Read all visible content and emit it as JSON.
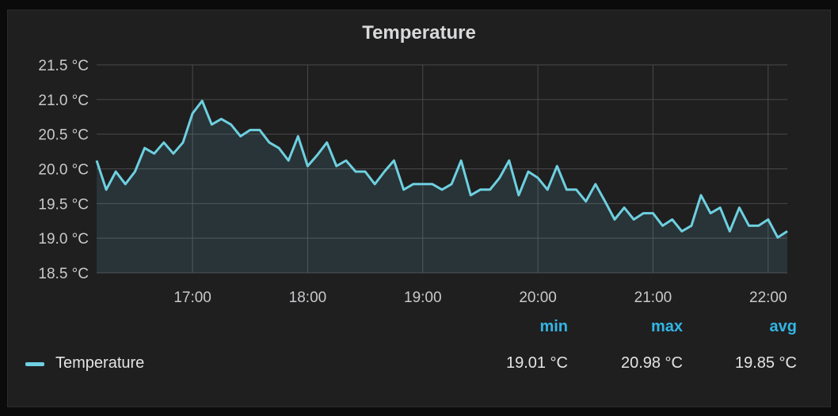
{
  "panel": {
    "title": "Temperature"
  },
  "chart_data": {
    "type": "area",
    "title": "Temperature",
    "ylim": [
      18.5,
      21.5
    ],
    "yticks": [
      "18.5 °C",
      "19.0 °C",
      "19.5 °C",
      "20.0 °C",
      "20.5 °C",
      "21.0 °C",
      "21.5 °C"
    ],
    "ytick_values": [
      18.5,
      19.0,
      19.5,
      20.0,
      20.5,
      21.0,
      21.5
    ],
    "xticks": [
      "17:00",
      "18:00",
      "19:00",
      "20:00",
      "21:00",
      "22:00"
    ],
    "xtick_values": [
      1020,
      1080,
      1140,
      1200,
      1260,
      1320
    ],
    "xlim": [
      970,
      1330
    ],
    "grid": true,
    "series": [
      {
        "name": "Temperature",
        "color": "#6ed0e0",
        "x": [
          970,
          975,
          980,
          985,
          990,
          995,
          1000,
          1005,
          1010,
          1015,
          1020,
          1025,
          1030,
          1035,
          1040,
          1045,
          1050,
          1055,
          1060,
          1065,
          1070,
          1075,
          1080,
          1085,
          1090,
          1095,
          1100,
          1105,
          1110,
          1115,
          1120,
          1125,
          1130,
          1135,
          1140,
          1145,
          1150,
          1155,
          1160,
          1165,
          1170,
          1175,
          1180,
          1185,
          1190,
          1195,
          1200,
          1205,
          1210,
          1215,
          1220,
          1225,
          1230,
          1235,
          1240,
          1245,
          1250,
          1255,
          1260,
          1265,
          1270,
          1275,
          1280,
          1285,
          1290,
          1295,
          1300,
          1305,
          1310,
          1315,
          1320,
          1325,
          1330
        ],
        "values": [
          20.12,
          19.7,
          19.96,
          19.78,
          19.96,
          20.3,
          20.22,
          20.38,
          20.22,
          20.38,
          20.8,
          20.98,
          20.64,
          20.72,
          20.64,
          20.47,
          20.56,
          20.56,
          20.38,
          20.3,
          20.12,
          20.47,
          20.04,
          20.2,
          20.38,
          20.04,
          20.12,
          19.96,
          19.96,
          19.78,
          19.96,
          20.12,
          19.7,
          19.78,
          19.78,
          19.78,
          19.7,
          19.78,
          20.12,
          19.62,
          19.7,
          19.7,
          19.87,
          20.12,
          19.62,
          19.96,
          19.87,
          19.7,
          20.04,
          19.7,
          19.7,
          19.53,
          19.78,
          19.53,
          19.27,
          19.44,
          19.27,
          19.36,
          19.36,
          19.18,
          19.27,
          19.1,
          19.18,
          19.62,
          19.36,
          19.44,
          19.1,
          19.44,
          19.18,
          19.18,
          19.27,
          19.01,
          19.1
        ]
      }
    ]
  },
  "legend": {
    "series_name": "Temperature",
    "headers": {
      "min": "min",
      "max": "max",
      "avg": "avg"
    },
    "values": {
      "min": "19.01 °C",
      "max": "20.98 °C",
      "avg": "19.85 °C"
    }
  }
}
